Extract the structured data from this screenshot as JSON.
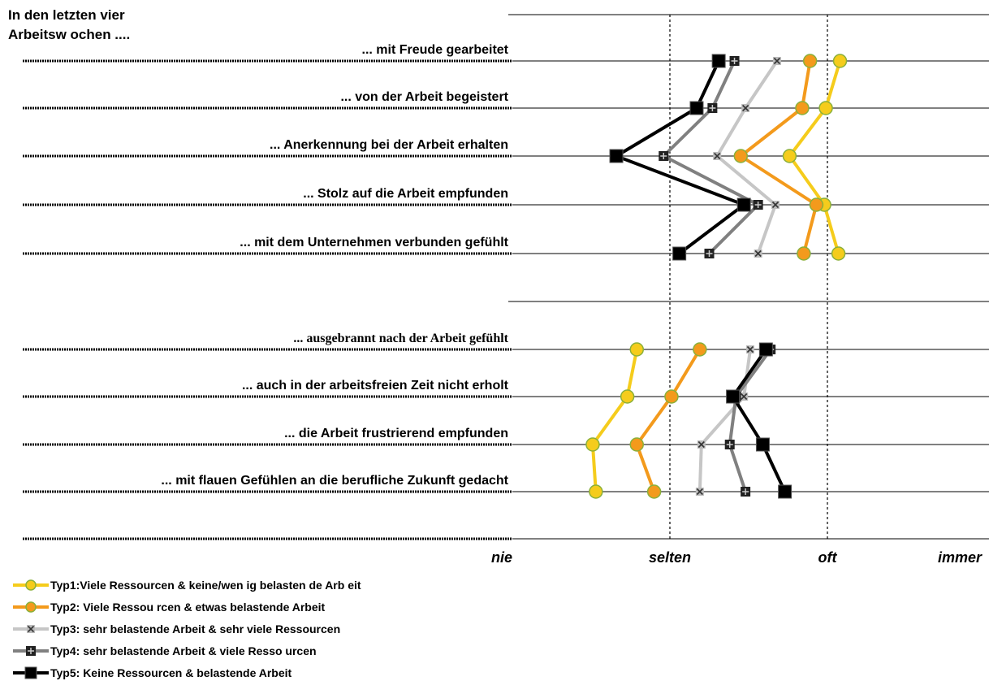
{
  "chart_data": {
    "type": "line",
    "title_lines": [
      "In den letzten vier",
      "Arbeitsw ochen ...."
    ],
    "x_ticks": [
      "nie",
      "selten",
      "oft",
      "immer"
    ],
    "x_range": [
      1,
      4
    ],
    "reference_lines": [
      2,
      3
    ],
    "groups": [
      {
        "items": [
          "... mit Freude gearbeitet",
          "... von der Arbeit begeistert",
          "... Anerkennung bei der Arbeit erhalten",
          "... Stolz auf die Arbeit empfunden",
          "... mit dem Unternehmen verbunden gefühlt"
        ]
      },
      {
        "items": [
          "... ausgebrannt nach der Arbeit gefühlt",
          "... auch in der arbeitsfreien Zeit nicht erholt",
          "... die Arbeit frustrierend empfunden",
          "... mit flauen Gefühlen an die berufliche Zukunft gedacht"
        ]
      }
    ],
    "series": [
      {
        "name": "Typ1:Viele Ressourcen & keine/wen ig belasten de Arb eit",
        "color": "#f5cc1c",
        "marker": "circle",
        "group1": [
          3.08,
          2.99,
          2.76,
          2.98,
          3.07
        ],
        "group2": [
          1.79,
          1.73,
          1.51,
          1.53
        ]
      },
      {
        "name": "Typ2: Viele Ressou rcen & etwas belastende Arbeit",
        "color": "#f39a1c",
        "marker": "circle",
        "group1": [
          2.89,
          2.84,
          2.45,
          2.93,
          2.85
        ],
        "group2": [
          2.19,
          2.01,
          1.79,
          1.9
        ]
      },
      {
        "name": "Typ3: sehr belastende Arbeit & sehr viele Ressourcen",
        "color": "#c6c6c6",
        "marker": "x",
        "group1": [
          2.68,
          2.48,
          2.3,
          2.67,
          2.56
        ],
        "group2": [
          2.51,
          2.47,
          2.2,
          2.19
        ]
      },
      {
        "name": "Typ4: sehr belastende Arbeit & viele Resso urcen",
        "color": "#808080",
        "marker": "plus",
        "group1": [
          2.41,
          2.27,
          1.96,
          2.56,
          2.25
        ],
        "group2": [
          2.64,
          2.42,
          2.38,
          2.48
        ]
      },
      {
        "name": "Typ5: Keine Ressourcen & belastende Arbeit",
        "color": "#000000",
        "marker": "square",
        "group1": [
          2.31,
          2.17,
          1.66,
          2.47,
          2.06
        ],
        "group2": [
          2.61,
          2.4,
          2.59,
          2.73
        ]
      }
    ]
  }
}
